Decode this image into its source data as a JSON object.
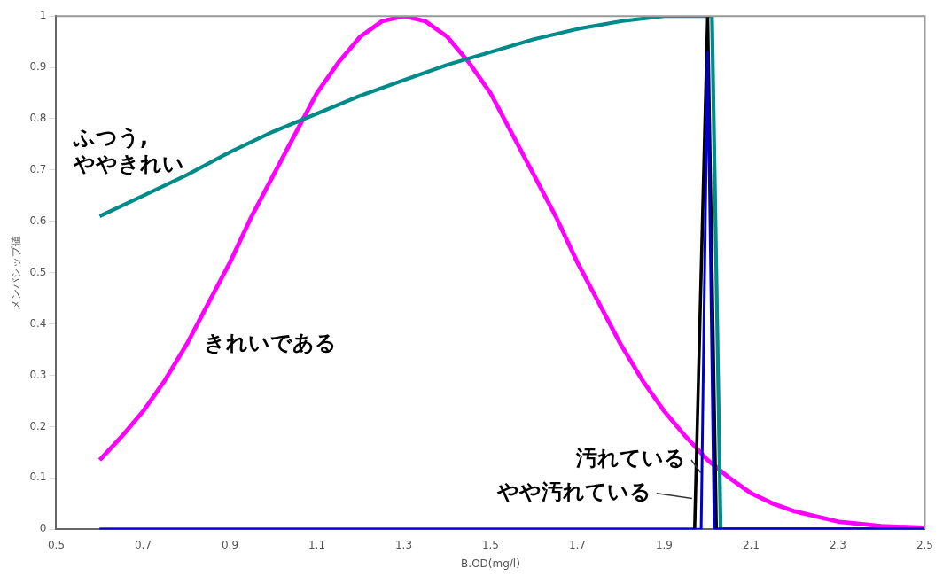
{
  "chart_data": {
    "type": "line",
    "xlabel": "B.OD(mg/l)",
    "ylabel": "メンバシップ値",
    "xlim": [
      0.5,
      2.5
    ],
    "xticks": [
      0.5,
      0.7,
      0.9,
      1.1,
      1.3,
      1.5,
      1.7,
      1.9,
      2.1,
      2.3,
      2.5
    ],
    "ylim": [
      0,
      1
    ],
    "yticks": [
      0,
      0.1,
      0.2,
      0.3,
      0.4,
      0.5,
      0.6,
      0.7,
      0.8,
      0.9,
      1
    ],
    "grid": false,
    "legend": false,
    "marker": "none",
    "line_style": "solid",
    "series": [
      {
        "name": "きれいである",
        "color": "#ff00ff",
        "x": [
          0.6,
          0.65,
          0.7,
          0.75,
          0.8,
          0.85,
          0.9,
          0.95,
          1.0,
          1.05,
          1.1,
          1.15,
          1.2,
          1.25,
          1.3,
          1.35,
          1.4,
          1.45,
          1.5,
          1.55,
          1.6,
          1.65,
          1.7,
          1.75,
          1.8,
          1.85,
          1.9,
          1.95,
          2.0,
          2.05,
          2.1,
          2.15,
          2.2,
          2.3,
          2.4,
          2.5
        ],
        "values": [
          0.135,
          0.18,
          0.23,
          0.29,
          0.36,
          0.44,
          0.52,
          0.61,
          0.69,
          0.77,
          0.85,
          0.91,
          0.96,
          0.99,
          1.0,
          0.99,
          0.96,
          0.91,
          0.85,
          0.77,
          0.69,
          0.61,
          0.52,
          0.44,
          0.36,
          0.29,
          0.23,
          0.18,
          0.135,
          0.1,
          0.07,
          0.05,
          0.035,
          0.015,
          0.006,
          0.003
        ]
      },
      {
        "name": "ふつう,\nややきれい",
        "color": "#008b8b",
        "x": [
          0.6,
          0.7,
          0.8,
          0.9,
          1.0,
          1.1,
          1.2,
          1.3,
          1.4,
          1.5,
          1.6,
          1.7,
          1.8,
          1.9,
          2.01,
          2.03,
          2.5
        ],
        "values": [
          0.61,
          0.65,
          0.69,
          0.735,
          0.775,
          0.81,
          0.845,
          0.875,
          0.905,
          0.93,
          0.955,
          0.975,
          0.99,
          1.0,
          1.0,
          0,
          0
        ]
      },
      {
        "name": "汚れている",
        "color": "#000000",
        "x": [
          0.6,
          1.97,
          2.0,
          2.02,
          2.5
        ],
        "values": [
          0,
          0,
          1,
          0,
          0
        ]
      },
      {
        "name": "やや汚れている",
        "color": "#0000cd",
        "x": [
          0.6,
          1.985,
          2.0,
          2.015,
          2.5
        ],
        "values": [
          0,
          0,
          0.93,
          0,
          0
        ]
      }
    ]
  }
}
